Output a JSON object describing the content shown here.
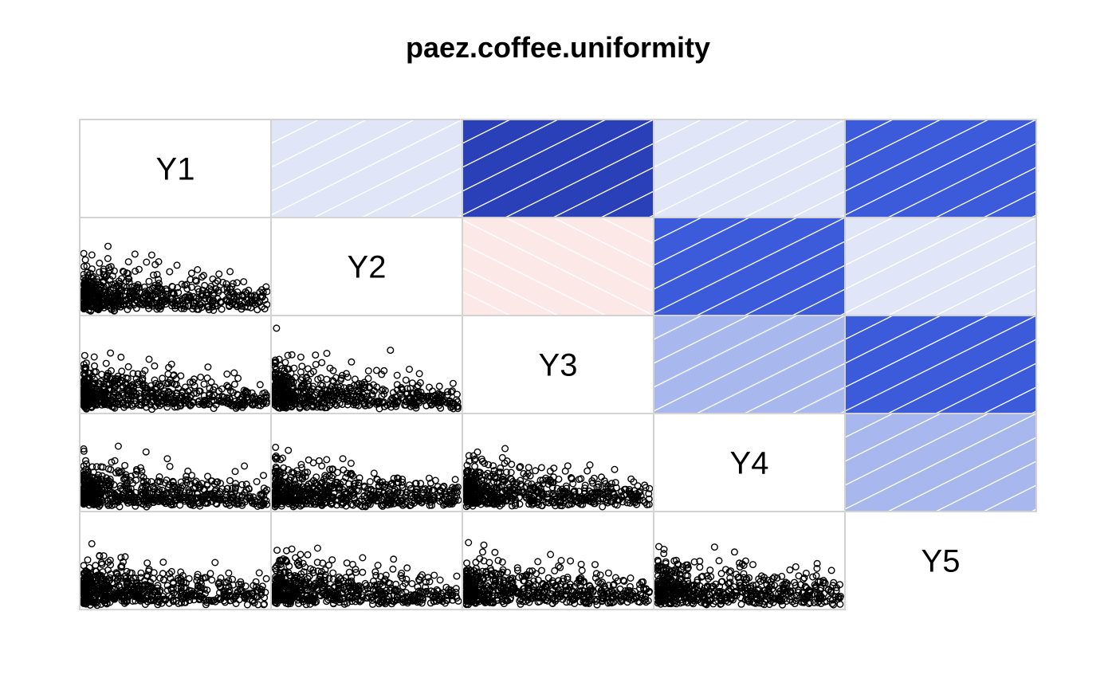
{
  "chart_data": {
    "type": "scatter-matrix",
    "title": "paez.coffee.uniformity",
    "variables": [
      "Y1",
      "Y2",
      "Y3",
      "Y4",
      "Y5"
    ],
    "upper_panel": "shade",
    "lower_panel": "points",
    "correlations": [
      {
        "pair": [
          "Y1",
          "Y2"
        ],
        "r": 0.12
      },
      {
        "pair": [
          "Y1",
          "Y3"
        ],
        "r": 0.85
      },
      {
        "pair": [
          "Y1",
          "Y4"
        ],
        "r": 0.12
      },
      {
        "pair": [
          "Y1",
          "Y5"
        ],
        "r": 0.75
      },
      {
        "pair": [
          "Y2",
          "Y3"
        ],
        "r": -0.1
      },
      {
        "pair": [
          "Y2",
          "Y4"
        ],
        "r": 0.75
      },
      {
        "pair": [
          "Y2",
          "Y5"
        ],
        "r": 0.12
      },
      {
        "pair": [
          "Y3",
          "Y4"
        ],
        "r": 0.4
      },
      {
        "pair": [
          "Y3",
          "Y5"
        ],
        "r": 0.75
      },
      {
        "pair": [
          "Y4",
          "Y5"
        ],
        "r": 0.4
      }
    ],
    "colors": {
      "positive_light": "#e0e6f8",
      "positive_mid": "#a8b8ee",
      "positive_strong": "#3b5bdb",
      "positive_darkest": "#2a40b8",
      "negative_light": "#fde8e8"
    },
    "grid": false
  }
}
